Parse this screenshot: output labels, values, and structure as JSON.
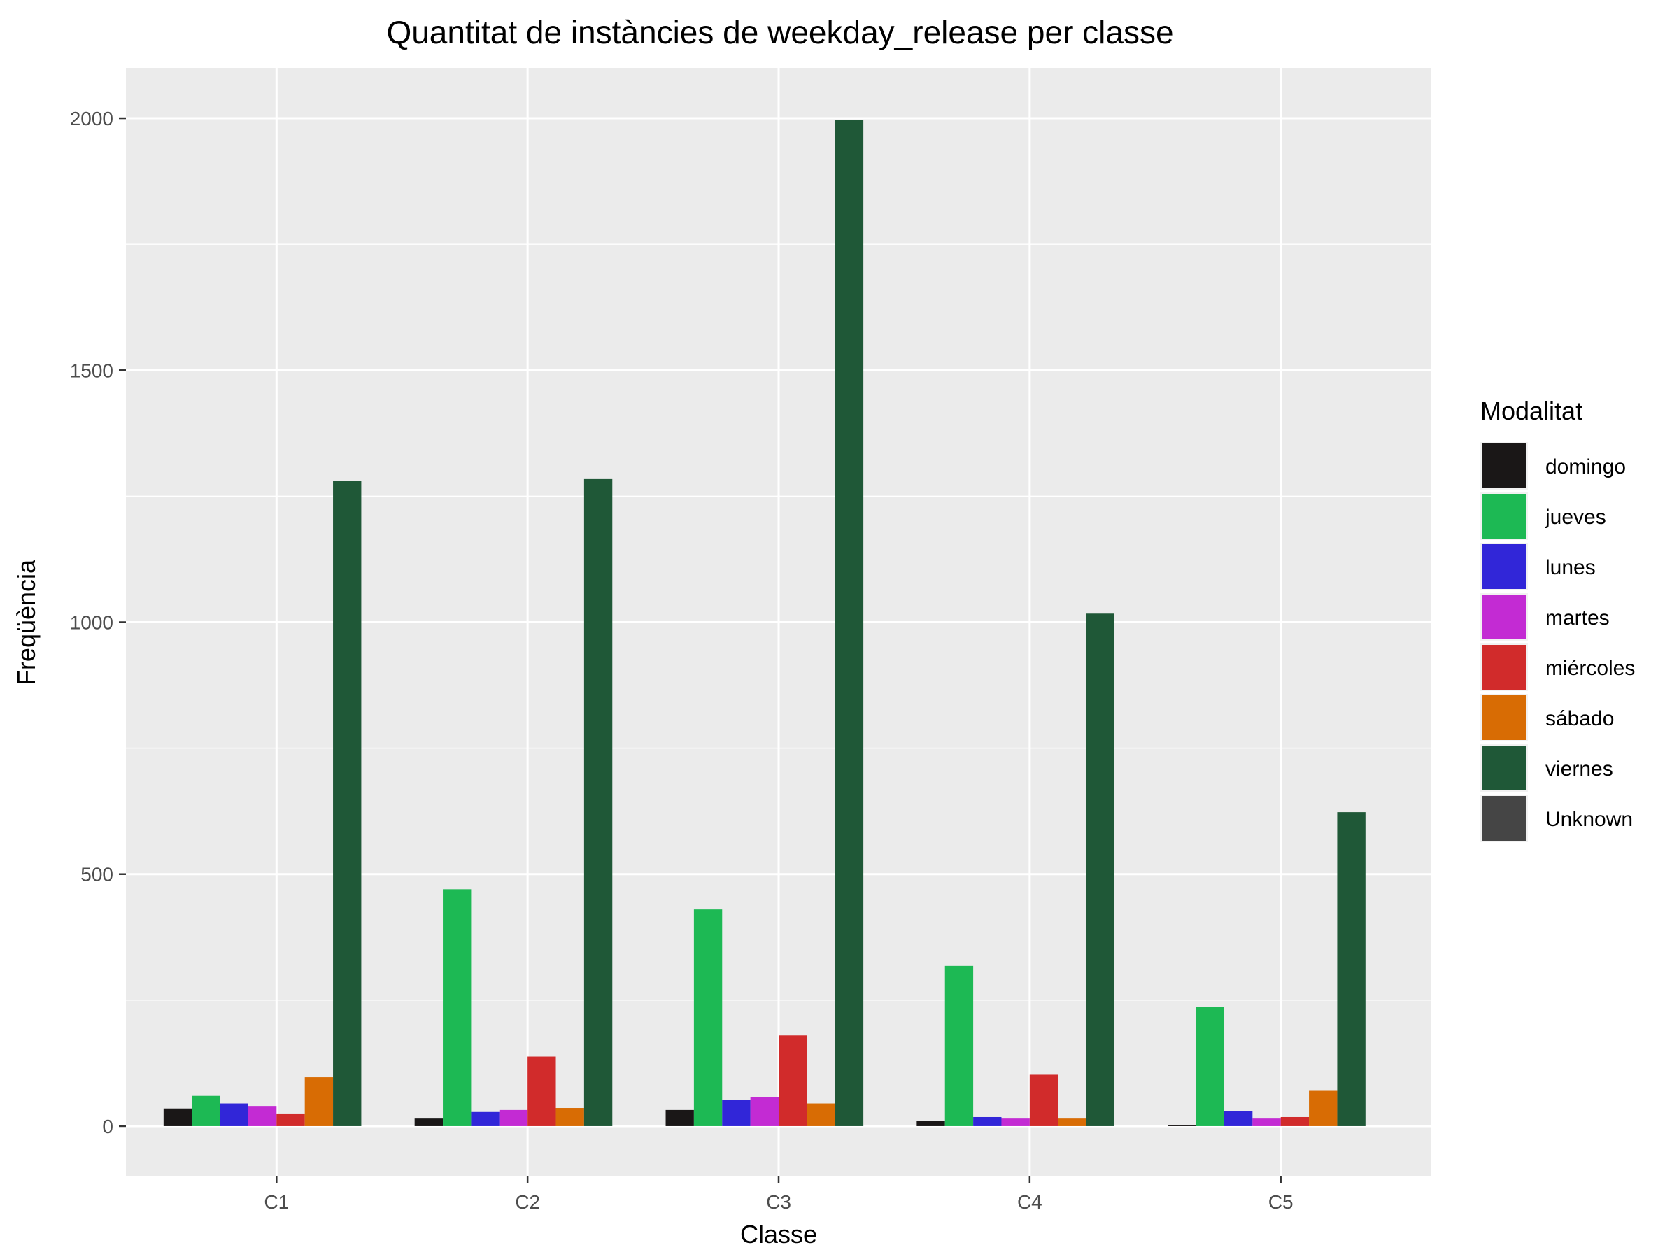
{
  "chart_data": {
    "type": "bar",
    "title": "Quantitat de instàncies de weekday_release per classe",
    "xlabel": "Classe",
    "ylabel": "Freqüència",
    "categories": [
      "C1",
      "C2",
      "C3",
      "C4",
      "C5"
    ],
    "y_ticks": [
      0,
      500,
      1000,
      1500,
      2000
    ],
    "y_tick_labels": [
      "0",
      "500",
      "1000",
      "1500",
      "2000"
    ],
    "ylim": [
      -100,
      2100
    ],
    "grid": true,
    "legend": {
      "title": "Modalitat",
      "placement": "right",
      "entries": [
        "domingo",
        "jueves",
        "lunes",
        "martes",
        "miércoles",
        "sábado",
        "viernes",
        "Unknown"
      ]
    },
    "series": [
      {
        "name": "domingo",
        "color": "#1a1717",
        "values": [
          35,
          15,
          32,
          10,
          2
        ]
      },
      {
        "name": "jueves",
        "color": "#1db954",
        "values": [
          60,
          470,
          430,
          318,
          237
        ]
      },
      {
        "name": "lunes",
        "color": "#3126d8",
        "values": [
          45,
          28,
          52,
          18,
          30
        ]
      },
      {
        "name": "martes",
        "color": "#c32bd3",
        "values": [
          40,
          32,
          57,
          15,
          15
        ]
      },
      {
        "name": "miércoles",
        "color": "#d12b2b",
        "values": [
          25,
          138,
          180,
          102,
          18
        ]
      },
      {
        "name": "sábado",
        "color": "#d86c04",
        "values": [
          97,
          36,
          45,
          15,
          70
        ]
      },
      {
        "name": "viernes",
        "color": "#1f5837",
        "values": [
          1281,
          1284,
          1997,
          1017,
          623
        ]
      },
      {
        "name": "Unknown",
        "color": "#454545",
        "values": [
          0,
          0,
          0,
          0,
          0
        ]
      }
    ]
  }
}
